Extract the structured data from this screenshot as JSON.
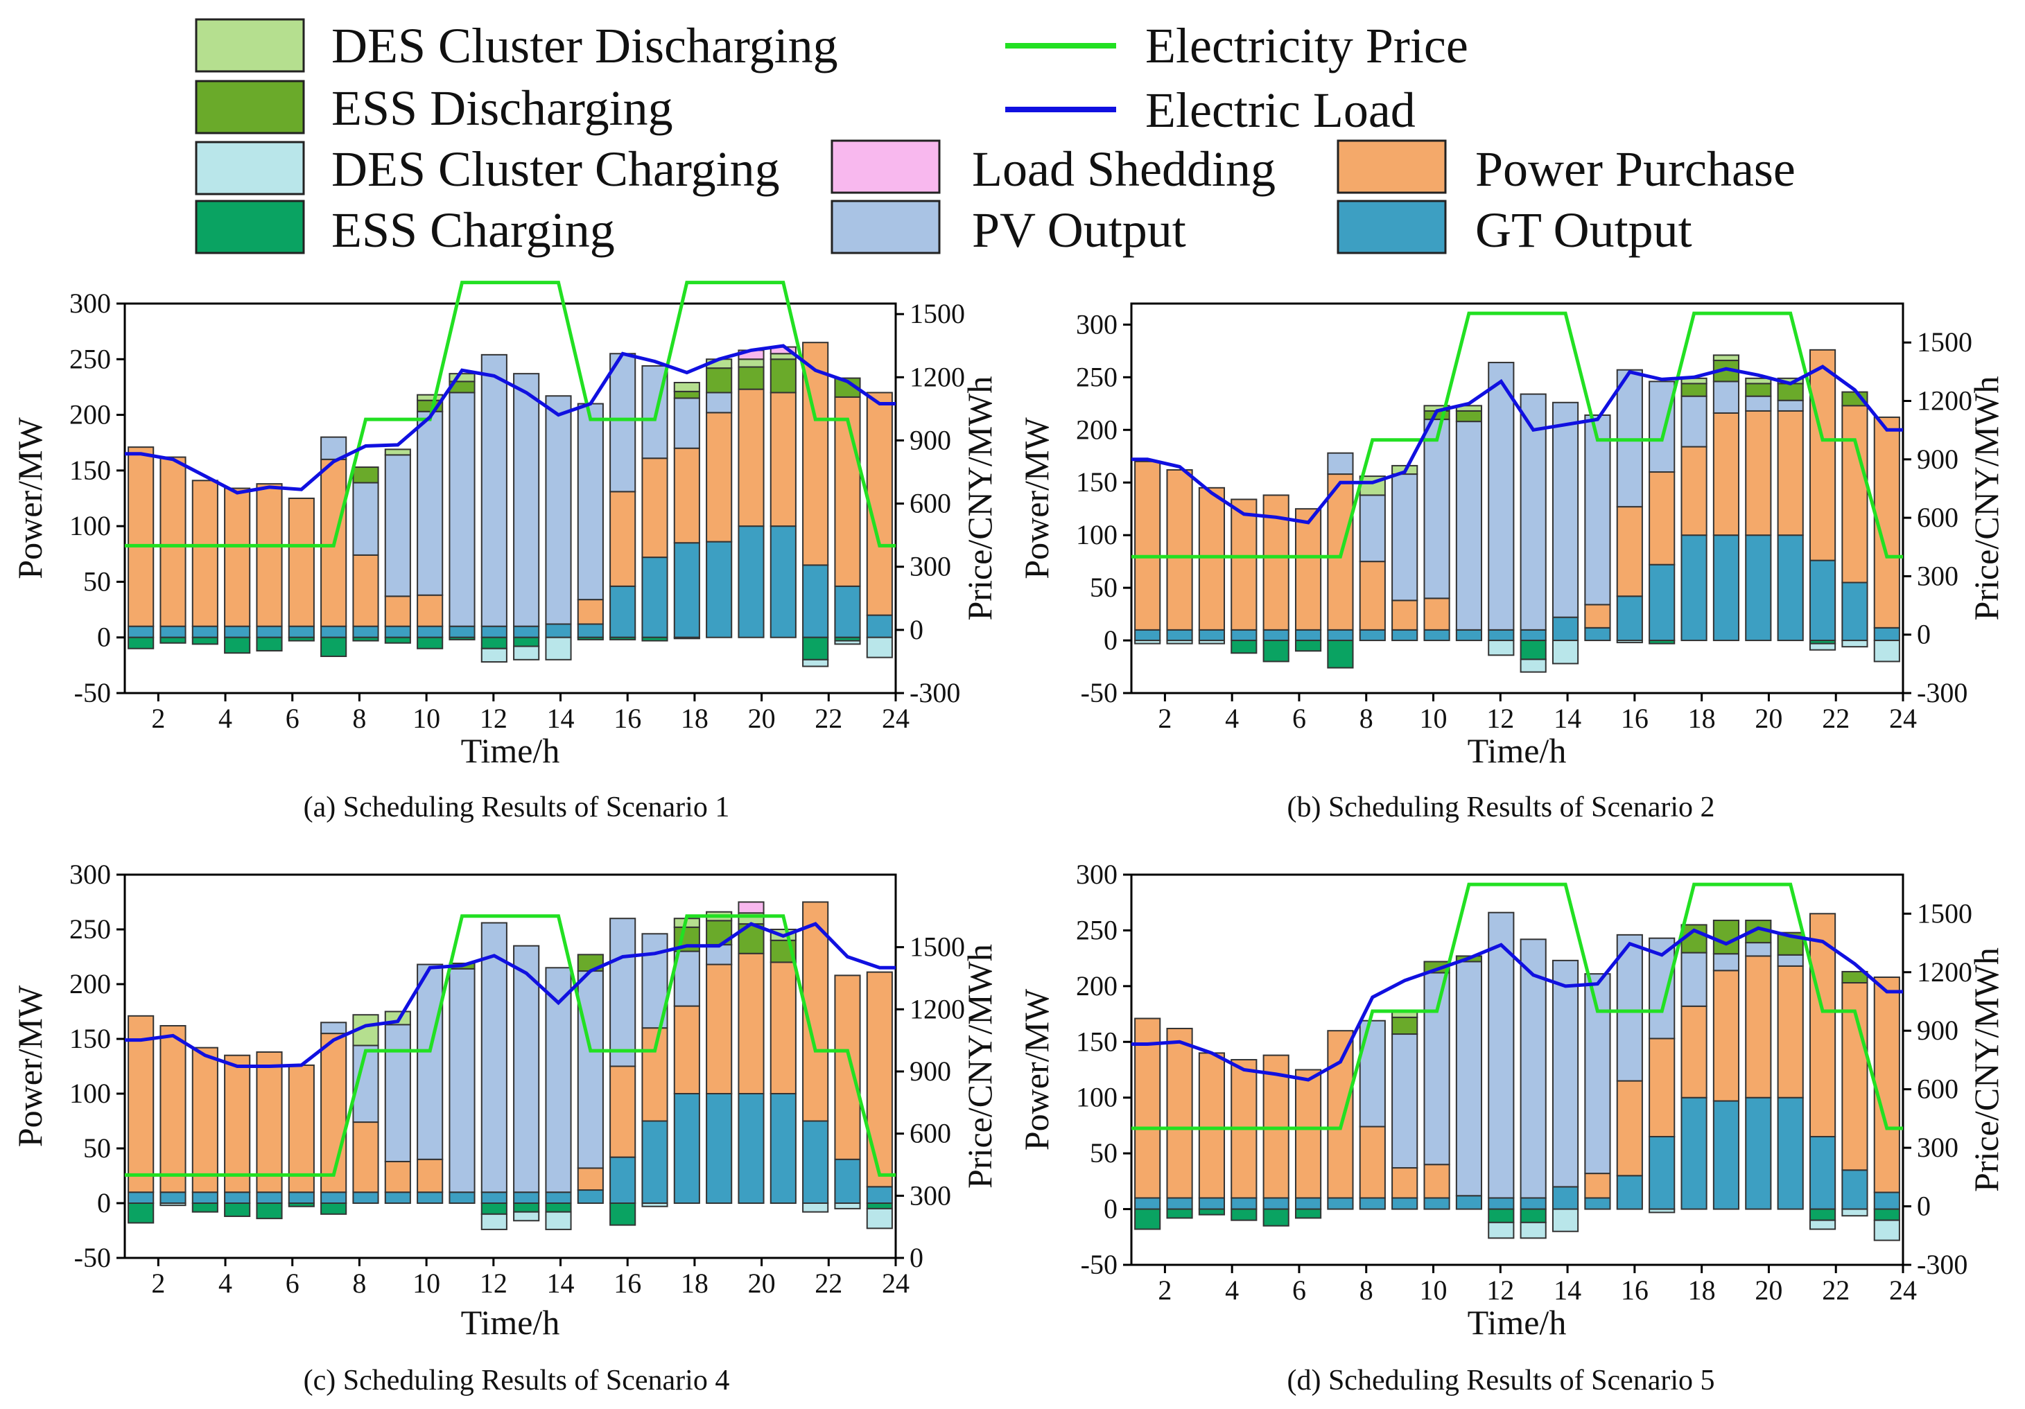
{
  "legend": {
    "items": [
      {
        "key": "des_dis",
        "label": "DES Cluster Discharging",
        "type": "box",
        "color": "#b5df8f"
      },
      {
        "key": "ess_dis",
        "label": "ESS Discharging",
        "type": "box",
        "color": "#6aaa2a"
      },
      {
        "key": "des_ch",
        "label": "DES Cluster Charging",
        "type": "box",
        "color": "#b9e6ea"
      },
      {
        "key": "ess_ch",
        "label": "ESS Charging",
        "type": "box",
        "color": "#0aa362"
      },
      {
        "key": "price",
        "label": "Electricity Price",
        "type": "line",
        "color": "#22e022"
      },
      {
        "key": "load",
        "label": "Electric Load",
        "type": "line",
        "color": "#1010e0"
      },
      {
        "key": "shed",
        "label": "Load Shedding",
        "type": "box",
        "color": "#f8b8ee"
      },
      {
        "key": "pv",
        "label": "PV Output",
        "type": "box",
        "color": "#a9c3e4"
      },
      {
        "key": "buy",
        "label": "Power Purchase",
        "type": "box",
        "color": "#f4a96a"
      },
      {
        "key": "gt",
        "label": "GT Output",
        "type": "box",
        "color": "#3d9fc2"
      }
    ]
  },
  "chart_data": [
    {
      "type": "bar",
      "title": "(a) Scheduling Results of Scenario 1",
      "xlabel": "Time/h",
      "ylabel": "Power/MW",
      "y2label": "Price/CNY/MWh",
      "xlim": [
        1,
        24
      ],
      "xticks": [
        2,
        4,
        6,
        8,
        10,
        12,
        14,
        16,
        18,
        20,
        22,
        24
      ],
      "ylim": [
        -50,
        300
      ],
      "yticks": [
        -50,
        0,
        50,
        100,
        150,
        200,
        250,
        300
      ],
      "y2lim": [
        -300,
        1550
      ],
      "y2ticks": [
        -300,
        0,
        300,
        600,
        900,
        1200,
        1500
      ],
      "hours": [
        1,
        2,
        3,
        4,
        5,
        6,
        7,
        8,
        9,
        10,
        11,
        12,
        13,
        14,
        15,
        16,
        17,
        18,
        19,
        20,
        21,
        22,
        23,
        24
      ],
      "gt": [
        10,
        10,
        10,
        10,
        10,
        10,
        10,
        10,
        10,
        10,
        10,
        10,
        10,
        12,
        12,
        46,
        72,
        85,
        86,
        100,
        100,
        65,
        46,
        20
      ],
      "buy": [
        161,
        152,
        131,
        124,
        128,
        115,
        150,
        64,
        27,
        28,
        0,
        0,
        0,
        0,
        22,
        85,
        89,
        85,
        116,
        123,
        120,
        200,
        170,
        200
      ],
      "pv": [
        0,
        0,
        0,
        0,
        0,
        0,
        20,
        65,
        127,
        165,
        210,
        244,
        227,
        205,
        176,
        124,
        83,
        45,
        18,
        0,
        0,
        0,
        0,
        0
      ],
      "ess_dis": [
        0,
        0,
        0,
        0,
        0,
        0,
        0,
        14,
        0,
        10,
        10,
        0,
        0,
        0,
        0,
        0,
        0,
        6,
        22,
        20,
        30,
        0,
        17,
        0
      ],
      "des_dis": [
        0,
        0,
        0,
        0,
        0,
        0,
        0,
        0,
        5,
        5,
        7,
        0,
        0,
        0,
        0,
        0,
        0,
        8,
        8,
        7,
        5,
        0,
        0,
        0
      ],
      "shed": [
        0,
        0,
        0,
        0,
        0,
        0,
        0,
        0,
        0,
        0,
        0,
        0,
        0,
        0,
        0,
        0,
        0,
        0,
        0,
        8,
        6,
        0,
        0,
        0
      ],
      "ess_ch": [
        -10,
        -5,
        -6,
        -14,
        -12,
        -3,
        -17,
        -3,
        -5,
        -10,
        -2,
        -10,
        -8,
        0,
        -2,
        -2,
        -3,
        -1,
        0,
        0,
        0,
        -20,
        -3,
        0
      ],
      "des_ch": [
        0,
        0,
        0,
        0,
        0,
        0,
        0,
        0,
        0,
        0,
        0,
        -12,
        -12,
        -20,
        0,
        0,
        0,
        0,
        0,
        0,
        0,
        -6,
        -3,
        -18
      ],
      "load": [
        165,
        160,
        145,
        130,
        135,
        133,
        158,
        172,
        173,
        198,
        240,
        235,
        220,
        200,
        210,
        255,
        248,
        238,
        250,
        258,
        262,
        240,
        230,
        210
      ],
      "price": [
        400,
        400,
        400,
        400,
        400,
        400,
        400,
        1000,
        1000,
        1000,
        1650,
        1650,
        1650,
        1650,
        1000,
        1000,
        1000,
        1650,
        1650,
        1650,
        1650,
        1000,
        1000,
        400
      ]
    },
    {
      "type": "bar",
      "title": "(b) Scheduling Results of Scenario 2",
      "xlabel": "Time/h",
      "ylabel": "Power/MW",
      "y2label": "Price/CNY/MWh",
      "xlim": [
        1,
        24
      ],
      "xticks": [
        2,
        4,
        6,
        8,
        10,
        12,
        14,
        16,
        18,
        20,
        22,
        24
      ],
      "ylim": [
        -50,
        320
      ],
      "yticks": [
        -50,
        0,
        50,
        100,
        150,
        200,
        250,
        300
      ],
      "y2lim": [
        -300,
        1700
      ],
      "y2ticks": [
        -300,
        0,
        300,
        600,
        900,
        1200,
        1500
      ],
      "hours": [
        1,
        2,
        3,
        4,
        5,
        6,
        7,
        8,
        9,
        10,
        11,
        12,
        13,
        14,
        15,
        16,
        17,
        18,
        19,
        20,
        21,
        22,
        23,
        24
      ],
      "gt": [
        10,
        10,
        10,
        10,
        10,
        10,
        10,
        10,
        10,
        10,
        10,
        10,
        10,
        22,
        12,
        42,
        72,
        100,
        100,
        100,
        100,
        76,
        55,
        12
      ],
      "buy": [
        160,
        152,
        135,
        124,
        128,
        115,
        148,
        65,
        28,
        30,
        0,
        0,
        0,
        0,
        22,
        85,
        88,
        84,
        116,
        118,
        118,
        200,
        168,
        200
      ],
      "pv": [
        0,
        0,
        0,
        0,
        0,
        0,
        20,
        63,
        120,
        170,
        198,
        254,
        224,
        204,
        180,
        130,
        86,
        48,
        30,
        14,
        10,
        0,
        0,
        0
      ],
      "ess_dis": [
        0,
        0,
        0,
        0,
        0,
        0,
        0,
        0,
        0,
        8,
        10,
        0,
        0,
        0,
        0,
        0,
        0,
        12,
        20,
        12,
        16,
        0,
        13,
        0
      ],
      "des_dis": [
        0,
        0,
        0,
        0,
        0,
        0,
        0,
        18,
        8,
        5,
        5,
        0,
        0,
        0,
        0,
        0,
        0,
        5,
        5,
        5,
        5,
        0,
        0,
        0
      ],
      "shed": [
        0,
        0,
        0,
        0,
        0,
        0,
        0,
        0,
        0,
        0,
        0,
        0,
        0,
        0,
        0,
        0,
        0,
        0,
        0,
        0,
        0,
        0,
        0,
        0
      ],
      "ess_ch": [
        0,
        0,
        0,
        -12,
        -20,
        -10,
        -26,
        0,
        0,
        0,
        0,
        0,
        -18,
        0,
        0,
        0,
        -3,
        0,
        0,
        0,
        0,
        -3,
        0,
        0
      ],
      "des_ch": [
        -3,
        -3,
        -3,
        0,
        0,
        0,
        0,
        0,
        0,
        0,
        0,
        -14,
        -12,
        -22,
        0,
        -2,
        0,
        0,
        0,
        0,
        0,
        -6,
        -6,
        -20
      ],
      "load": [
        172,
        165,
        140,
        120,
        117,
        112,
        150,
        150,
        160,
        218,
        225,
        246,
        200,
        205,
        210,
        255,
        248,
        250,
        258,
        252,
        244,
        260,
        238,
        200
      ],
      "price": [
        400,
        400,
        400,
        400,
        400,
        400,
        400,
        1000,
        1000,
        1000,
        1650,
        1650,
        1650,
        1650,
        1000,
        1000,
        1000,
        1650,
        1650,
        1650,
        1650,
        1000,
        1000,
        400
      ]
    },
    {
      "type": "bar",
      "title": "(c) Scheduling Results of Scenario 4",
      "xlabel": "Time/h",
      "ylabel": "Power/MW",
      "y2label": "Price/CNY/MWh",
      "xlim": [
        1,
        24
      ],
      "xticks": [
        2,
        4,
        6,
        8,
        10,
        12,
        14,
        16,
        18,
        20,
        22,
        24
      ],
      "ylim": [
        -50,
        300
      ],
      "yticks": [
        -50,
        0,
        50,
        100,
        150,
        200,
        250,
        300
      ],
      "y2lim": [
        0,
        1850
      ],
      "y2ticks": [
        0,
        300,
        600,
        900,
        1200,
        1500
      ],
      "hours": [
        1,
        2,
        3,
        4,
        5,
        6,
        7,
        8,
        9,
        10,
        11,
        12,
        13,
        14,
        15,
        16,
        17,
        18,
        19,
        20,
        21,
        22,
        23,
        24
      ],
      "gt": [
        10,
        10,
        10,
        10,
        10,
        10,
        10,
        10,
        10,
        10,
        10,
        10,
        10,
        10,
        12,
        42,
        75,
        100,
        100,
        100,
        100,
        75,
        40,
        15
      ],
      "buy": [
        161,
        152,
        132,
        125,
        128,
        116,
        145,
        64,
        28,
        30,
        0,
        0,
        0,
        0,
        20,
        83,
        85,
        80,
        118,
        128,
        120,
        200,
        168,
        196
      ],
      "pv": [
        0,
        0,
        0,
        0,
        0,
        0,
        10,
        70,
        125,
        178,
        204,
        246,
        225,
        205,
        180,
        135,
        86,
        50,
        18,
        0,
        0,
        0,
        0,
        0
      ],
      "ess_dis": [
        0,
        0,
        0,
        0,
        0,
        0,
        0,
        0,
        0,
        0,
        5,
        0,
        0,
        0,
        15,
        0,
        0,
        22,
        22,
        27,
        20,
        0,
        0,
        0
      ],
      "des_dis": [
        0,
        0,
        0,
        0,
        0,
        0,
        0,
        28,
        12,
        0,
        0,
        0,
        0,
        0,
        0,
        0,
        0,
        8,
        8,
        10,
        10,
        0,
        0,
        0
      ],
      "shed": [
        0,
        0,
        0,
        0,
        0,
        0,
        0,
        0,
        0,
        0,
        0,
        0,
        0,
        0,
        0,
        0,
        0,
        0,
        0,
        10,
        0,
        0,
        0,
        0
      ],
      "ess_ch": [
        -18,
        0,
        -8,
        -12,
        -14,
        -3,
        -10,
        0,
        0,
        0,
        0,
        -10,
        -8,
        -8,
        0,
        -20,
        0,
        0,
        0,
        0,
        0,
        0,
        0,
        -5
      ],
      "des_ch": [
        0,
        -2,
        0,
        0,
        0,
        0,
        0,
        0,
        0,
        0,
        0,
        -14,
        -8,
        -16,
        0,
        0,
        -3,
        0,
        0,
        0,
        0,
        -8,
        -5,
        -18
      ],
      "load": [
        149,
        153,
        135,
        125,
        125,
        126,
        149,
        162,
        166,
        215,
        217,
        226,
        210,
        183,
        212,
        225,
        228,
        235,
        235,
        255,
        244,
        255,
        225,
        215
      ],
      "price": [
        400,
        400,
        400,
        400,
        400,
        400,
        400,
        1000,
        1000,
        1000,
        1650,
        1650,
        1650,
        1650,
        1000,
        1000,
        1000,
        1650,
        1650,
        1650,
        1650,
        1000,
        1000,
        400
      ]
    },
    {
      "type": "bar",
      "title": "(d) Scheduling Results of Scenario 5",
      "xlabel": "Time/h",
      "ylabel": "Power/MW",
      "y2label": "Price/CNY/MWh",
      "xlim": [
        1,
        24
      ],
      "xticks": [
        2,
        4,
        6,
        8,
        10,
        12,
        14,
        16,
        18,
        20,
        22,
        24
      ],
      "ylim": [
        -50,
        300
      ],
      "yticks": [
        -50,
        0,
        50,
        100,
        150,
        200,
        250,
        300
      ],
      "y2lim": [
        -300,
        1700
      ],
      "y2ticks": [
        -300,
        0,
        300,
        600,
        900,
        1200,
        1500
      ],
      "hours": [
        1,
        2,
        3,
        4,
        5,
        6,
        7,
        8,
        9,
        10,
        11,
        12,
        13,
        14,
        15,
        16,
        17,
        18,
        19,
        20,
        21,
        22,
        23,
        24
      ],
      "gt": [
        10,
        10,
        10,
        10,
        10,
        10,
        10,
        10,
        10,
        10,
        12,
        10,
        10,
        20,
        10,
        30,
        65,
        100,
        97,
        100,
        100,
        65,
        35,
        15
      ],
      "buy": [
        161,
        152,
        130,
        124,
        128,
        115,
        150,
        64,
        27,
        30,
        0,
        0,
        0,
        0,
        22,
        85,
        88,
        82,
        117,
        127,
        118,
        200,
        168,
        193
      ],
      "pv": [
        0,
        0,
        0,
        0,
        0,
        0,
        0,
        95,
        120,
        172,
        210,
        256,
        232,
        203,
        179,
        131,
        90,
        48,
        15,
        12,
        10,
        0,
        0,
        0
      ],
      "ess_dis": [
        0,
        0,
        0,
        0,
        0,
        0,
        0,
        0,
        15,
        10,
        5,
        0,
        0,
        0,
        0,
        0,
        0,
        25,
        30,
        20,
        20,
        0,
        10,
        0
      ],
      "des_dis": [
        0,
        0,
        0,
        0,
        0,
        0,
        0,
        0,
        5,
        0,
        0,
        0,
        0,
        0,
        0,
        0,
        0,
        0,
        0,
        0,
        0,
        0,
        0,
        0
      ],
      "shed": [
        0,
        0,
        0,
        0,
        0,
        0,
        0,
        0,
        0,
        0,
        0,
        0,
        0,
        0,
        0,
        0,
        0,
        0,
        0,
        0,
        0,
        0,
        0,
        0
      ],
      "ess_ch": [
        -18,
        -8,
        -5,
        -10,
        -15,
        -8,
        0,
        0,
        0,
        0,
        0,
        -12,
        -12,
        0,
        0,
        0,
        0,
        0,
        0,
        0,
        0,
        -10,
        0,
        -10
      ],
      "des_ch": [
        0,
        0,
        0,
        0,
        0,
        0,
        0,
        0,
        0,
        0,
        0,
        -14,
        -14,
        -20,
        0,
        0,
        -3,
        0,
        0,
        0,
        0,
        -8,
        -6,
        -18
      ],
      "load": [
        148,
        150,
        140,
        125,
        121,
        116,
        132,
        190,
        205,
        215,
        225,
        237,
        210,
        200,
        202,
        238,
        228,
        250,
        238,
        252,
        245,
        240,
        220,
        195
      ],
      "price": [
        400,
        400,
        400,
        400,
        400,
        400,
        400,
        1000,
        1000,
        1000,
        1650,
        1650,
        1650,
        1650,
        1000,
        1000,
        1000,
        1650,
        1650,
        1650,
        1650,
        1000,
        1000,
        400
      ]
    }
  ]
}
